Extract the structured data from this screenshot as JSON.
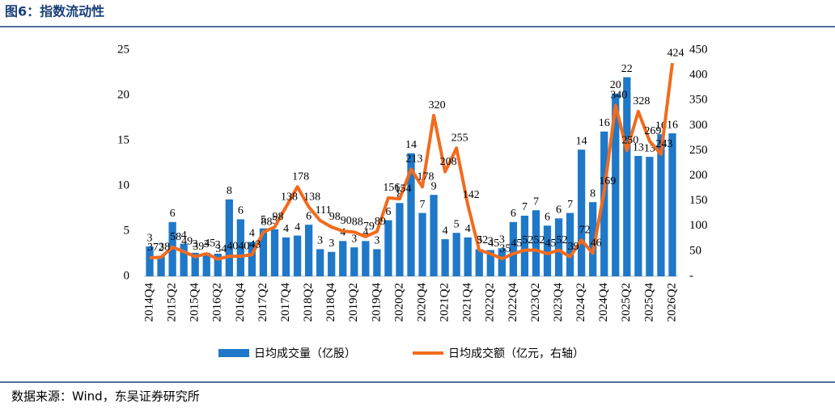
{
  "title": "图6：指数流动性",
  "source": "数据来源：Wind，东吴证券研究所",
  "chart_data": {
    "type": "bar_line",
    "categories": [
      "2014Q4",
      null,
      "2015Q2",
      null,
      "2015Q4",
      null,
      "2016Q2",
      null,
      "2016Q4",
      null,
      "2017Q2",
      null,
      "2017Q4",
      null,
      "2018Q2",
      null,
      "2018Q4",
      null,
      "2019Q2",
      null,
      "2019Q4",
      null,
      "2020Q2",
      null,
      "2020Q4",
      null,
      "2021Q2",
      null,
      "2021Q4",
      null,
      "2022Q2",
      null,
      "2022Q4",
      null,
      "2023Q2",
      null,
      "2023Q4",
      null,
      "2024Q2",
      null,
      "2024Q4",
      null,
      "2025Q2",
      null,
      "2025Q4",
      null,
      "2026Q2"
    ],
    "series": [
      {
        "name": "日均成交量（亿股）",
        "type": "bar",
        "color": "#1f78c8",
        "values": [
          3.3,
          2.2,
          6.0,
          3.6,
          2.6,
          2.6,
          2.5,
          8.5,
          6.3,
          3.8,
          5.3,
          5.2,
          4.3,
          4.5,
          5.7,
          3.0,
          2.7,
          3.9,
          3.2,
          3.9,
          3.0,
          6.2,
          8.1,
          13.6,
          7.0,
          9.0,
          4.1,
          4.8,
          4.3,
          3.0,
          2.9,
          3.1,
          6.0,
          6.7,
          7.3,
          5.6,
          6.4,
          7.0,
          14.0,
          8.2,
          16.0,
          20.2,
          22.0,
          13.3,
          13.2,
          15.7,
          15.8
        ],
        "value_labels": [
          "3",
          "2",
          "6",
          "4",
          "3",
          "3",
          "3",
          "8",
          "6",
          "4",
          "5",
          "5",
          "4",
          "4",
          "6",
          "3",
          "3",
          "4",
          "3",
          "4",
          "3",
          "6",
          "8",
          "14",
          "7",
          "9",
          "4",
          "5",
          "4",
          "3",
          "3",
          "3",
          "6",
          "7",
          "7",
          "6",
          "6",
          "7",
          "14",
          "8",
          "16",
          "20",
          "22",
          "13",
          "13",
          "16",
          "16"
        ]
      },
      {
        "name": "日均成交额（亿元，右轴）",
        "type": "line",
        "axis": "y2",
        "color": "#f26b1d",
        "values": [
          37,
          38,
          58,
          49,
          39,
          45,
          34,
          40,
          40,
          43,
          88,
          98,
          138,
          178,
          138,
          111,
          98,
          90,
          88,
          79,
          89,
          156,
          154,
          213,
          178,
          320,
          208,
          255,
          142,
          52,
          45,
          35,
          45,
          52,
          52,
          45,
          52,
          39,
          72,
          46,
          169,
          340,
          250,
          328,
          269,
          243,
          424
        ],
        "value_labels": [
          "37",
          "38",
          "58",
          "49",
          "39",
          "45",
          "34",
          "40",
          "40",
          "43",
          "88",
          "98",
          "138",
          "178",
          "138",
          "111",
          "98",
          "90",
          "88",
          "79",
          "89",
          "156",
          "154",
          "213",
          "178",
          "320",
          "208",
          "255",
          "142",
          "52",
          "45",
          "35",
          "45",
          "52",
          "52",
          "45",
          "52",
          "39",
          "72",
          "46",
          "169",
          "340",
          "250",
          "328",
          "269",
          "243",
          "424"
        ]
      }
    ],
    "ylim": [
      0,
      25
    ],
    "yticks": [
      0,
      5,
      10,
      15,
      20,
      25
    ],
    "y2lim": [
      0,
      450
    ],
    "y2ticks": [
      {
        "value": 0,
        "label": "-"
      },
      50,
      100,
      150,
      200,
      250,
      300,
      350,
      400,
      450
    ],
    "legend": "bottom"
  }
}
